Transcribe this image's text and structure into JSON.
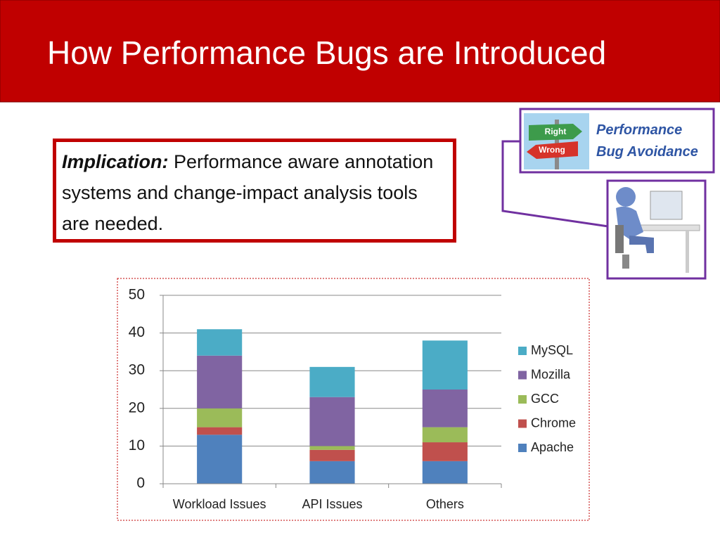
{
  "title": "How Performance Bugs are Introduced",
  "implication": {
    "label": "Implication:",
    "text": "Performance aware annotation systems and change-impact analysis tools are needed."
  },
  "callout": {
    "label": "Performance Bug Avoidance",
    "sign": {
      "right": "Right",
      "wrong": "Wrong"
    }
  },
  "chart_data": {
    "type": "stacked_bar",
    "categories": [
      "Workload Issues",
      "API Issues",
      "Others"
    ],
    "series": [
      {
        "name": "Apache",
        "color": "#4f81bd",
        "values": [
          13,
          6,
          6
        ]
      },
      {
        "name": "Chrome",
        "color": "#c0504d",
        "values": [
          2,
          3,
          5
        ]
      },
      {
        "name": "GCC",
        "color": "#9bbb59",
        "values": [
          5,
          1,
          4
        ]
      },
      {
        "name": "Mozilla",
        "color": "#8064a2",
        "values": [
          14,
          13,
          10
        ]
      },
      {
        "name": "MySQL",
        "color": "#4bacc6",
        "values": [
          7,
          8,
          13
        ]
      }
    ],
    "ylim": [
      0,
      50
    ],
    "yticks": [
      0,
      10,
      20,
      30,
      40,
      50
    ],
    "grid": true,
    "legend": "right"
  }
}
